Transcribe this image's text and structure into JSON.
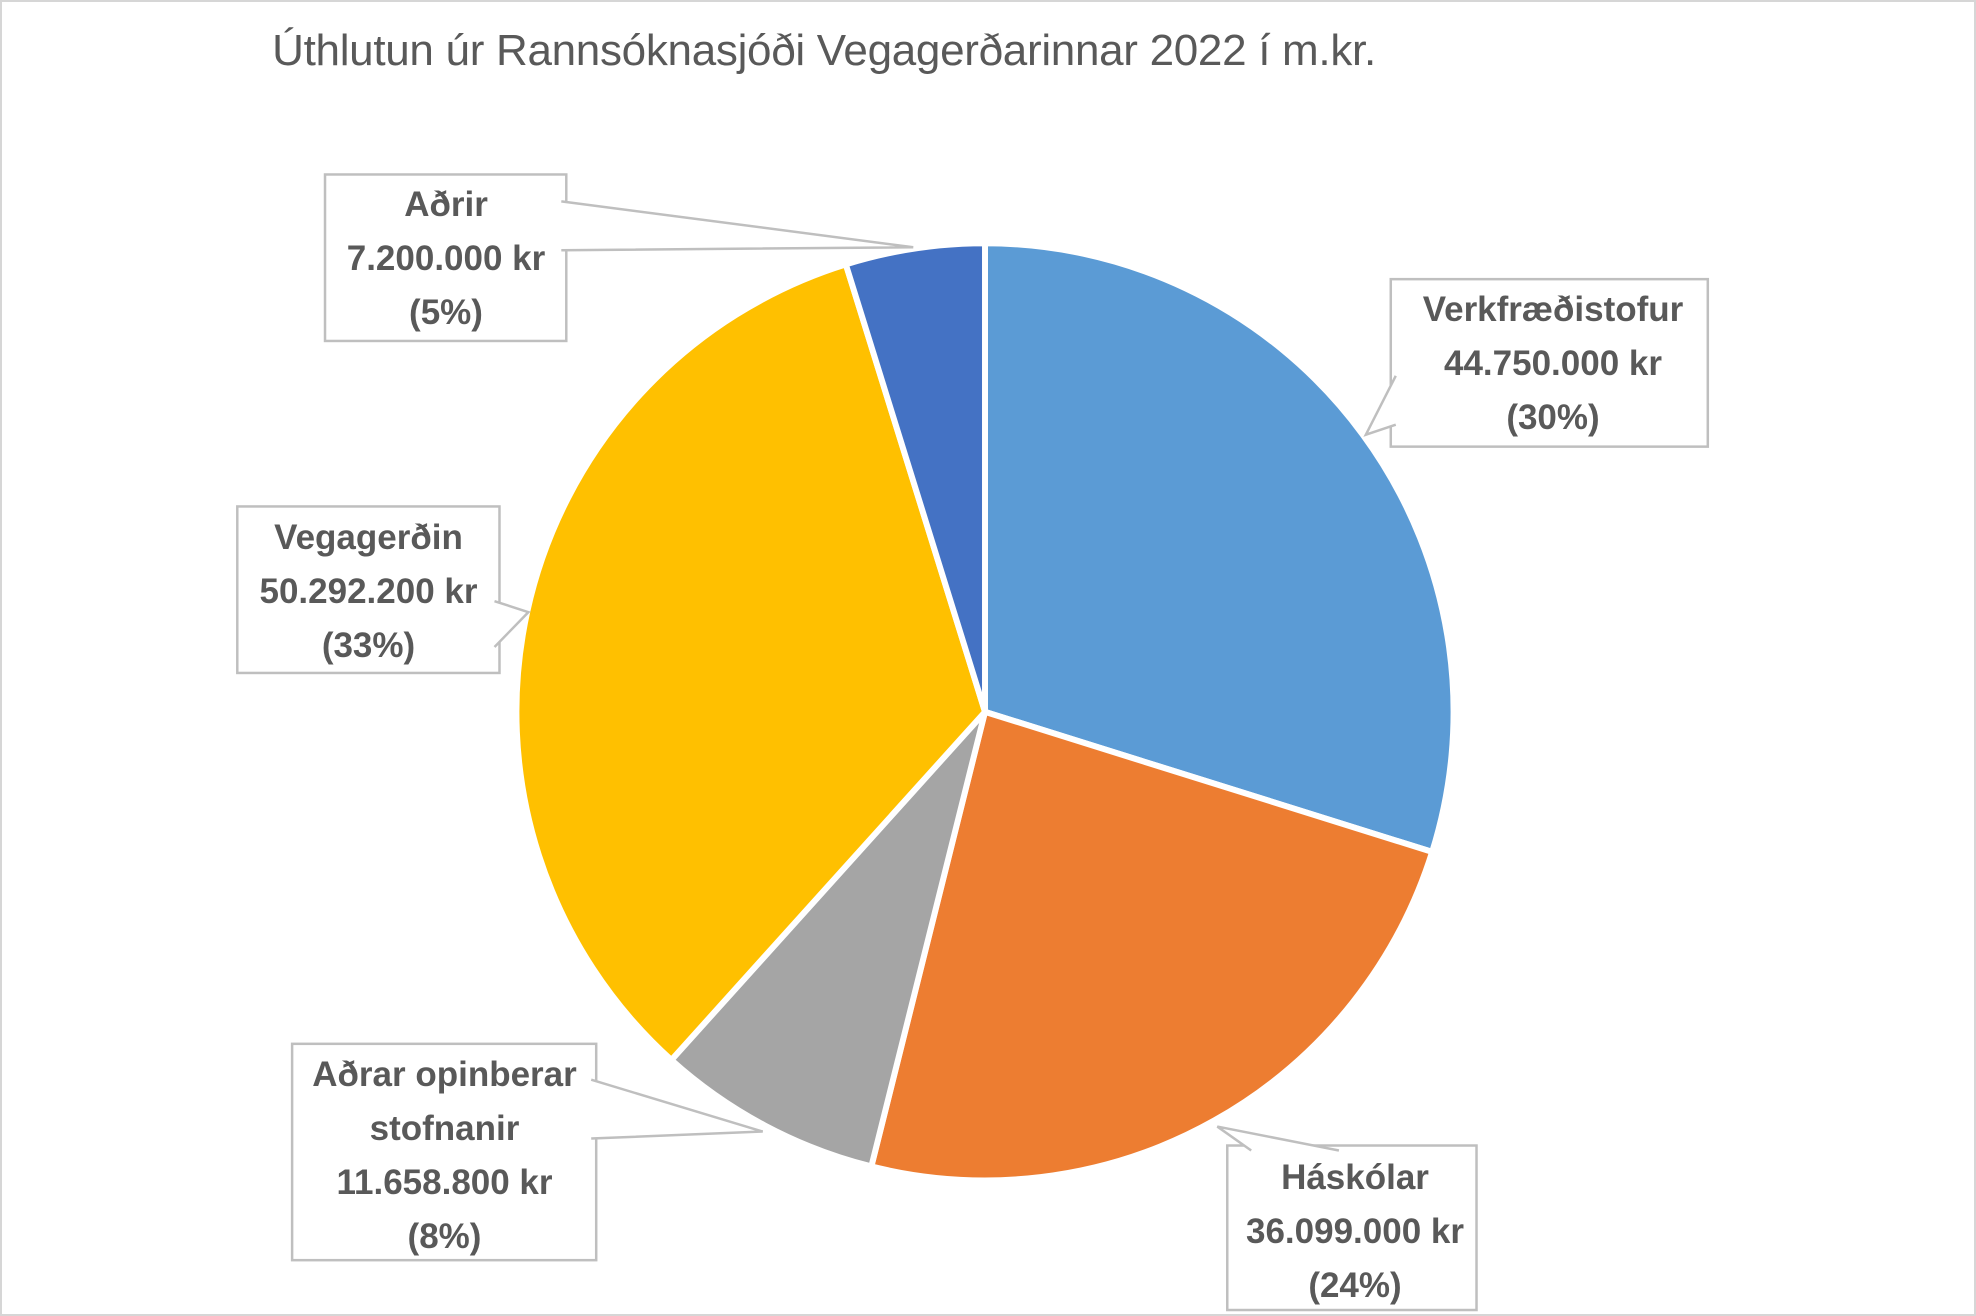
{
  "title": "Úthlutun úr Rannsóknasjóði Vegagerðarinnar 2022 í m.kr.",
  "chart_data": {
    "type": "pie",
    "title": "Úthlutun úr Rannsóknasjóði Vegagerðarinnar 2022 í m.kr.",
    "unit": "kr",
    "total": 150000000,
    "start_angle_deg": 0,
    "direction": "clockwise",
    "legend": "none",
    "data_labels": "callout boxes with category, value and percent",
    "slices": [
      {
        "id": "verkfraedistofur",
        "label": "Verkfræðistofur",
        "value": 44750000,
        "value_label": "44.750.000 kr",
        "percent": 30,
        "percent_label": "(30%)",
        "color": "#5B9BD5"
      },
      {
        "id": "haskolar",
        "label": "Háskólar",
        "value": 36099000,
        "value_label": "36.099.000 kr",
        "percent": 24,
        "percent_label": "(24%)",
        "color": "#ED7D31"
      },
      {
        "id": "adrar-opinberar-stofnanir",
        "label": "Aðrar opinberar stofnanir",
        "value": 11658800,
        "value_label": "11.658.800 kr",
        "percent": 8,
        "percent_label": "(8%)",
        "color": "#A5A5A5"
      },
      {
        "id": "vegagerdin",
        "label": "Vegagerðin",
        "value": 50292200,
        "value_label": "50.292.200 kr",
        "percent": 33,
        "percent_label": "(33%)",
        "color": "#FFC000"
      },
      {
        "id": "adrir",
        "label": "Aðrir",
        "value": 7200000,
        "value_label": "7.200.000 kr",
        "percent": 5,
        "percent_label": "(5%)",
        "color": "#4472C4"
      }
    ]
  },
  "styles": {
    "title_color": "#595959",
    "label_text_color": "#595959",
    "box_border_color": "#BFBFBF",
    "pie_separator_color": "#FFFFFF",
    "canvas_border_color": "#D6D6D6",
    "background": "#FFFFFF"
  }
}
